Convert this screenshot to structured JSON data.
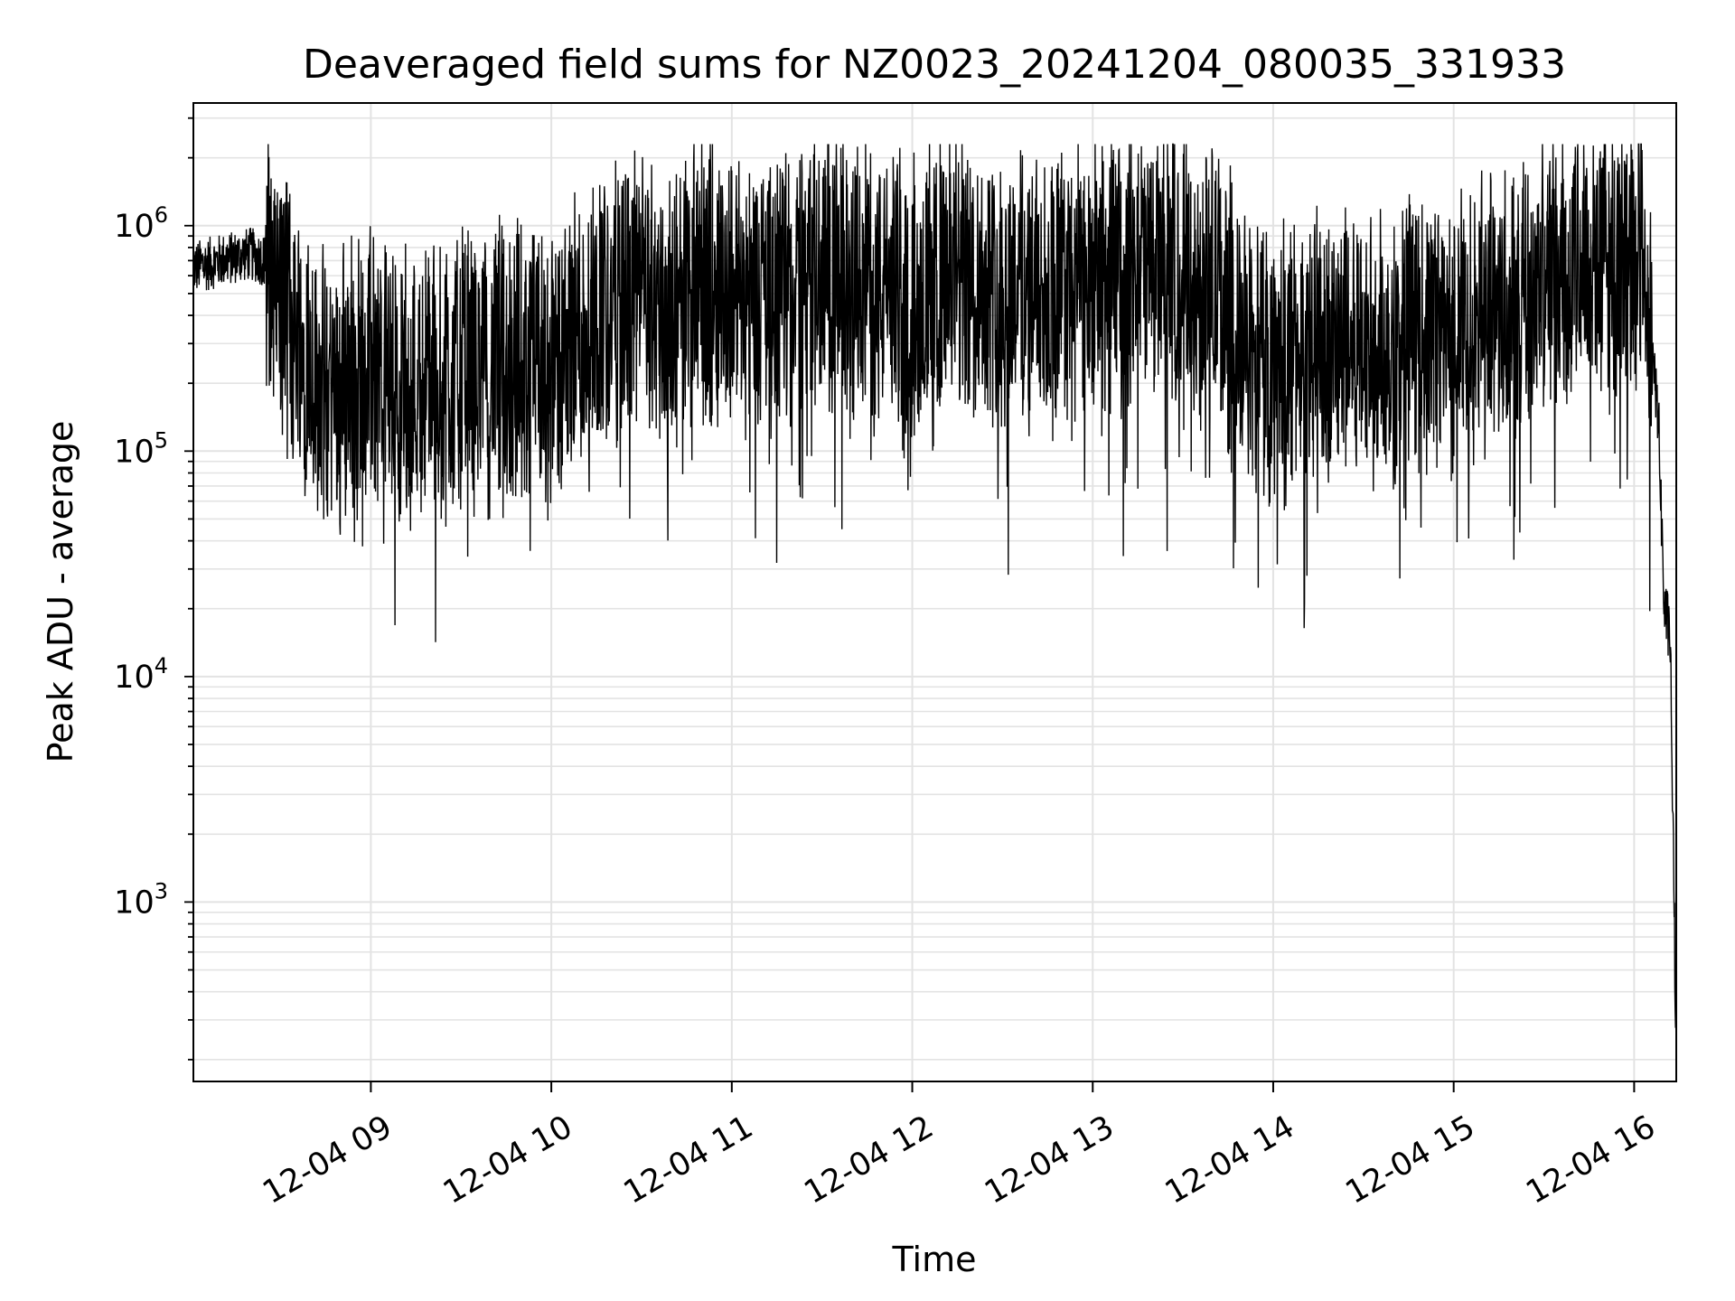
{
  "chart_data": {
    "type": "line",
    "title": "Deaveraged field sums for NZ0023_20241204_080035_331933",
    "xlabel": "Time",
    "ylabel": "Peak ADU - average",
    "x_ticks": [
      "12-04 09",
      "12-04 10",
      "12-04 11",
      "12-04 12",
      "12-04 13",
      "12-04 14",
      "12-04 15",
      "12-04 16"
    ],
    "y_ticks": [
      {
        "base": "10",
        "exp": "3",
        "value": 1000
      },
      {
        "base": "10",
        "exp": "4",
        "value": 10000
      },
      {
        "base": "10",
        "exp": "5",
        "value": 100000
      },
      {
        "base": "10",
        "exp": "6",
        "value": 1000000
      }
    ],
    "y_scale": "log",
    "ylim": [
      160,
      3500000
    ],
    "xlim": [
      "2024-12-04 08:01",
      "2024-12-04 16:14"
    ],
    "grid": true,
    "line_color": "#000000",
    "series": [
      {
        "x": [
          "2024-12-04 08:01",
          "2024-12-04 08:10",
          "2024-12-04 08:20",
          "2024-12-04 08:25",
          "2024-12-04 08:30",
          "2024-12-04 08:35",
          "2024-12-04 08:40",
          "2024-12-04 08:45",
          "2024-12-04 08:50",
          "2024-12-04 09:00",
          "2024-12-04 09:10",
          "2024-12-04 09:20",
          "2024-12-04 09:30",
          "2024-12-04 09:45",
          "2024-12-04 10:00",
          "2024-12-04 10:15",
          "2024-12-04 10:30",
          "2024-12-04 10:40",
          "2024-12-04 10:50",
          "2024-12-04 11:00",
          "2024-12-04 11:15",
          "2024-12-04 11:30",
          "2024-12-04 11:45",
          "2024-12-04 12:00",
          "2024-12-04 12:15",
          "2024-12-04 12:30",
          "2024-12-04 12:45",
          "2024-12-04 13:00",
          "2024-12-04 13:15",
          "2024-12-04 13:30",
          "2024-12-04 13:40",
          "2024-12-04 13:50",
          "2024-12-04 14:00",
          "2024-12-04 14:15",
          "2024-12-04 14:30",
          "2024-12-04 14:45",
          "2024-12-04 15:00",
          "2024-12-04 15:15",
          "2024-12-04 15:30",
          "2024-12-04 15:45",
          "2024-12-04 16:00",
          "2024-12-04 16:03",
          "2024-12-04 16:05",
          "2024-12-04 16:08",
          "2024-12-04 16:10",
          "2024-12-04 16:12",
          "2024-12-04 16:14"
        ],
        "values": [
          650000,
          700000,
          750000,
          700000,
          500000,
          350000,
          250000,
          180000,
          200000,
          250000,
          200000,
          220000,
          230000,
          250000,
          230000,
          400000,
          500000,
          400000,
          600000,
          550000,
          500000,
          650000,
          550000,
          500000,
          600000,
          550000,
          500000,
          550000,
          650000,
          650000,
          550000,
          300000,
          250000,
          280000,
          300000,
          320000,
          350000,
          450000,
          650000,
          700000,
          700000,
          900000,
          300000,
          150000,
          20000,
          15000,
          200
        ]
      }
    ]
  }
}
